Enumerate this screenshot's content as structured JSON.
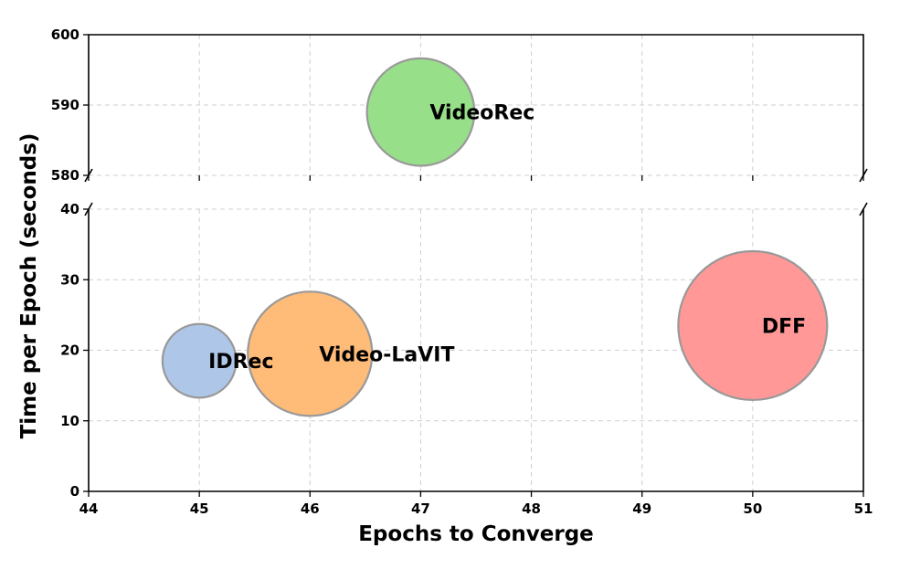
{
  "chart_data": {
    "type": "scatter",
    "xlabel": "Epochs to Converge",
    "ylabel": "Time per Epoch (seconds)",
    "xlim": [
      44,
      51
    ],
    "x_ticks": [
      "44",
      "45",
      "46",
      "47",
      "48",
      "49",
      "50",
      "51"
    ],
    "broken_y_axis": true,
    "upper_ylim": [
      580,
      600
    ],
    "upper_y_ticks": [
      "580",
      "590",
      "600"
    ],
    "lower_ylim": [
      0,
      40
    ],
    "lower_y_ticks": [
      "0",
      "10",
      "20",
      "30",
      "40"
    ],
    "grid": true,
    "points": [
      {
        "label": "IDRec",
        "x": 45,
        "y": 18.5,
        "relative_size": 0.48,
        "color": "#aec7e8",
        "panel": "lower"
      },
      {
        "label": "Video-LaVIT",
        "x": 46,
        "y": 19.5,
        "relative_size": 0.81,
        "color": "#ffbb78",
        "panel": "lower"
      },
      {
        "label": "DFF",
        "x": 50,
        "y": 23.5,
        "relative_size": 0.97,
        "color": "#ff9896",
        "panel": "lower"
      },
      {
        "label": "VideoRec",
        "x": 47,
        "y": 589,
        "relative_size": 0.7,
        "color": "#98df8a",
        "panel": "upper"
      }
    ]
  }
}
